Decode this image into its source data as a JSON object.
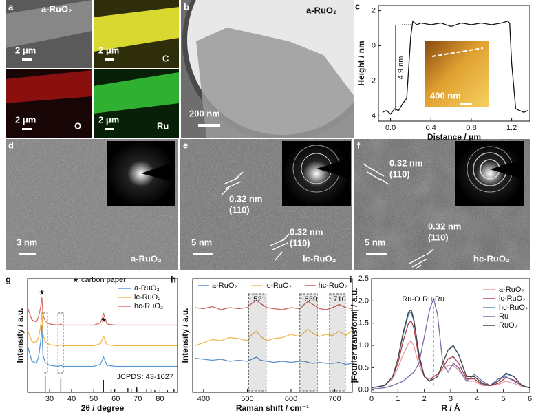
{
  "panels": [
    {
      "letter": "a",
      "sample": "a-RuO₂",
      "scale": "2 μm",
      "maps": [
        {
          "scale": "2 μm",
          "element": "C"
        },
        {
          "scale": "2 μm",
          "element": "O"
        },
        {
          "scale": "2 μm",
          "element": "Ru"
        }
      ]
    },
    {
      "letter": "b",
      "sample": "a-RuO₂",
      "scale": "200 nm"
    },
    {
      "letter": "d",
      "sample": "a-RuO₂",
      "scale": "3 nm"
    },
    {
      "letter": "e",
      "sample": "lc-RuO₂",
      "scale": "5 nm",
      "spacings": [
        {
          "d": "0.32 nm",
          "plane": "(110)"
        },
        {
          "d": "0.32 nm",
          "plane": "(110)"
        }
      ]
    },
    {
      "letter": "f",
      "sample": "hc-RuO₂",
      "scale": "5 nm",
      "spacings": [
        {
          "d": "0.32 nm",
          "plane": "(110)"
        },
        {
          "d": "0.32 nm",
          "plane": "(110)"
        }
      ]
    }
  ],
  "chart_data": [
    {
      "type": "line",
      "panel": "c",
      "x_label": "Distance / μm",
      "y_label": "Height / nm",
      "x": [
        -0.08,
        -0.04,
        0,
        0.04,
        0.08,
        0.12,
        0.16,
        0.2,
        0.22,
        0.26,
        0.3,
        0.4,
        0.5,
        0.6,
        0.7,
        0.8,
        0.9,
        1.0,
        1.1,
        1.16,
        1.18,
        1.2,
        1.24,
        1.28,
        1.32,
        1.36
      ],
      "series": [
        {
          "color": "#111111",
          "values": [
            -3.8,
            -3.7,
            -3.9,
            -3.6,
            -3.7,
            -3.3,
            -3.0,
            0.5,
            1.4,
            1.2,
            1.3,
            1.2,
            1.3,
            1.1,
            1.3,
            1.2,
            1.3,
            1.2,
            1.3,
            1.4,
            1.3,
            -1.0,
            -3.6,
            -3.7,
            -3.8,
            -3.7
          ]
        }
      ],
      "xlim": [
        -0.12,
        1.38
      ],
      "ylim": [
        -4.3,
        2.3
      ],
      "xticks": [
        {
          "value": 0,
          "label": "0.0"
        },
        0.4,
        0.8,
        1.2
      ],
      "yticks": [
        -4,
        -2,
        0,
        2
      ],
      "step_height": {
        "label": "4.9 nm",
        "x": 0.05,
        "from": -3.7,
        "to": 1.2
      },
      "inset_scale": "400 nm"
    },
    {
      "type": "line",
      "panel": "g",
      "x_label": "2θ / degree",
      "y_label": "Intensity / a.u.",
      "x": [
        20,
        22,
        24,
        25,
        26,
        26.5,
        27,
        28,
        30,
        34,
        35,
        36,
        40,
        45,
        50,
        53,
        54.5,
        56,
        60,
        70,
        80,
        88
      ],
      "series": [
        {
          "name": "a-RuO₂",
          "color": "#5b9bd5",
          "values": [
            4.5,
            3.0,
            2.8,
            3.4,
            5.0,
            6.5,
            3.6,
            2.9,
            2.6,
            2.5,
            2.6,
            2.5,
            2.5,
            2.5,
            2.5,
            2.7,
            3.4,
            2.6,
            2.5,
            2.5,
            2.5,
            2.5
          ]
        },
        {
          "name": "lc-RuO₂",
          "color": "#f2b64a",
          "values": [
            6.0,
            4.9,
            4.8,
            5.3,
            6.5,
            7.8,
            5.6,
            4.9,
            4.6,
            4.5,
            4.6,
            4.5,
            4.5,
            4.5,
            4.5,
            4.7,
            5.4,
            4.6,
            4.5,
            4.5,
            4.5,
            4.5
          ]
        },
        {
          "name": "hc-RuO₂",
          "color": "#d9706a",
          "values": [
            8.2,
            7.0,
            6.8,
            7.3,
            8.3,
            9.2,
            7.5,
            6.9,
            6.6,
            6.5,
            6.6,
            6.5,
            6.5,
            6.5,
            6.5,
            6.7,
            7.6,
            6.6,
            6.5,
            6.5,
            6.5,
            6.5
          ]
        }
      ],
      "xlim": [
        20,
        88
      ],
      "ylim": [
        0,
        11
      ],
      "xticks": [
        30,
        40,
        50,
        60,
        70,
        80
      ],
      "legend": "upper right",
      "peak_markers": {
        "label": "carbon paper",
        "x": [
          26.5,
          54.5
        ]
      },
      "highlight_xranges": [
        [
          27,
          29
        ],
        [
          33.8,
          36.2
        ]
      ],
      "reference": {
        "name": "JCPDS: 43-1027",
        "positions": [
          28,
          35.1,
          40,
          54.4,
          57.9,
          59.4,
          65.5,
          67,
          69.5,
          74,
          76,
          77.7,
          83.4,
          86.4
        ],
        "heights": [
          1.6,
          1.3,
          0.3,
          1.2,
          0.3,
          0.3,
          0.4,
          0.3,
          0.5,
          0.3,
          0.3,
          0.2,
          0.2,
          0.3
        ]
      }
    },
    {
      "type": "line",
      "panel": "h",
      "x_label": "Raman shift / cm⁻¹",
      "y_label": "Intensity / a.u.",
      "x": [
        380,
        400,
        420,
        440,
        460,
        480,
        500,
        510,
        521,
        530,
        545,
        560,
        580,
        600,
        620,
        630,
        639,
        650,
        665,
        680,
        695,
        710,
        725,
        740
      ],
      "series": [
        {
          "name": "a-RuO₂",
          "color": "#5b8fc9",
          "values": [
            3.3,
            3.2,
            3.1,
            3.2,
            3.0,
            3.1,
            3.0,
            3.2,
            3.4,
            3.1,
            3.0,
            2.9,
            3.0,
            2.9,
            3.0,
            3.0,
            2.9,
            2.8,
            2.9,
            2.8,
            2.8,
            2.9,
            2.7,
            2.8
          ]
        },
        {
          "name": "lc-RuO₂",
          "color": "#f2b84b",
          "values": [
            4.5,
            4.8,
            5.1,
            5.0,
            5.3,
            5.2,
            5.0,
            5.6,
            5.9,
            5.4,
            5.0,
            5.2,
            5.3,
            5.6,
            5.4,
            5.8,
            6.1,
            5.7,
            5.4,
            5.6,
            5.5,
            5.9,
            5.5,
            6.0
          ]
        },
        {
          "name": "hc-RuO₂",
          "color": "#c9605a",
          "values": [
            8.2,
            8.1,
            8.3,
            8.0,
            8.2,
            8.1,
            8.2,
            8.6,
            8.9,
            8.6,
            8.2,
            8.1,
            8.0,
            8.2,
            8.1,
            8.5,
            8.8,
            8.5,
            8.1,
            8.0,
            8.2,
            8.5,
            8.2,
            8.1
          ]
        }
      ],
      "xlim": [
        375,
        740
      ],
      "ylim": [
        0,
        11
      ],
      "xticks": [
        400,
        500,
        600,
        700
      ],
      "legend": "top",
      "highlight_xranges": [
        [
          503,
          543
        ],
        [
          620,
          660
        ],
        [
          688,
          724
        ]
      ],
      "highlight_labels": [
        "~521",
        "~639",
        "~710"
      ]
    },
    {
      "type": "line",
      "panel": "i",
      "x_label": "R / Å",
      "y_label": "|Fourier transform| / a.u.",
      "x": [
        0,
        0.5,
        0.8,
        1.0,
        1.2,
        1.4,
        1.5,
        1.6,
        1.8,
        2.0,
        2.2,
        2.35,
        2.5,
        2.7,
        2.9,
        3.1,
        3.3,
        3.6,
        3.9,
        4.2,
        4.5,
        4.8,
        5.1,
        5.4,
        5.7,
        6.0
      ],
      "series": [
        {
          "name": "a-RuO₂",
          "color": "#e89a9a",
          "values": [
            0.05,
            0.1,
            0.25,
            0.5,
            0.8,
            1.05,
            1.1,
            1.0,
            0.55,
            0.3,
            0.25,
            0.3,
            0.35,
            0.45,
            0.55,
            0.55,
            0.45,
            0.2,
            0.2,
            0.1,
            0.1,
            0.12,
            0.2,
            0.15,
            0.08,
            0.05
          ]
        },
        {
          "name": "lc-RuO₂",
          "color": "#b03a48",
          "values": [
            0.05,
            0.1,
            0.3,
            0.6,
            1.1,
            1.5,
            1.55,
            1.4,
            0.7,
            0.3,
            0.2,
            0.3,
            0.35,
            0.5,
            0.7,
            0.75,
            0.6,
            0.25,
            0.25,
            0.12,
            0.1,
            0.15,
            0.28,
            0.22,
            0.1,
            0.05
          ]
        },
        {
          "name": "hc-RuO₂",
          "color": "#4a8fc4",
          "values": [
            0.05,
            0.1,
            0.3,
            0.7,
            1.25,
            1.7,
            1.75,
            1.55,
            0.8,
            0.3,
            0.2,
            0.25,
            0.3,
            0.6,
            0.9,
            0.98,
            0.8,
            0.3,
            0.3,
            0.15,
            0.1,
            0.2,
            0.36,
            0.3,
            0.1,
            0.05
          ]
        },
        {
          "name": "Ru",
          "color": "#7a6bb0",
          "values": [
            0.02,
            0.05,
            0.1,
            0.15,
            0.2,
            0.3,
            0.35,
            0.4,
            0.6,
            1.2,
            1.8,
            2.05,
            1.7,
            0.6,
            0.4,
            0.6,
            0.5,
            0.2,
            0.35,
            0.2,
            0.1,
            0.25,
            0.3,
            0.2,
            0.1,
            0.05
          ]
        },
        {
          "name": "RuO₂",
          "color": "#444444",
          "values": [
            0.05,
            0.1,
            0.3,
            0.7,
            1.3,
            1.75,
            1.8,
            1.6,
            0.8,
            0.3,
            0.2,
            0.25,
            0.3,
            0.6,
            0.9,
            1.0,
            0.8,
            0.3,
            0.3,
            0.15,
            0.1,
            0.2,
            0.38,
            0.3,
            0.1,
            0.05
          ]
        }
      ],
      "xlim": [
        0,
        6
      ],
      "ylim": [
        -0.05,
        2.5
      ],
      "xticks": [
        0,
        1,
        2,
        3,
        4,
        5,
        6
      ],
      "yticks": [
        {
          "value": 0,
          "label": "0.0"
        },
        0.5,
        {
          "value": 1,
          "label": "1.0"
        },
        1.5,
        {
          "value": 2,
          "label": "2.0"
        },
        2.5
      ],
      "legend": "upper right",
      "markers": [
        {
          "label": "Ru-O",
          "x": 1.5
        },
        {
          "label": "Ru-Ru",
          "x": 2.35
        }
      ]
    }
  ]
}
